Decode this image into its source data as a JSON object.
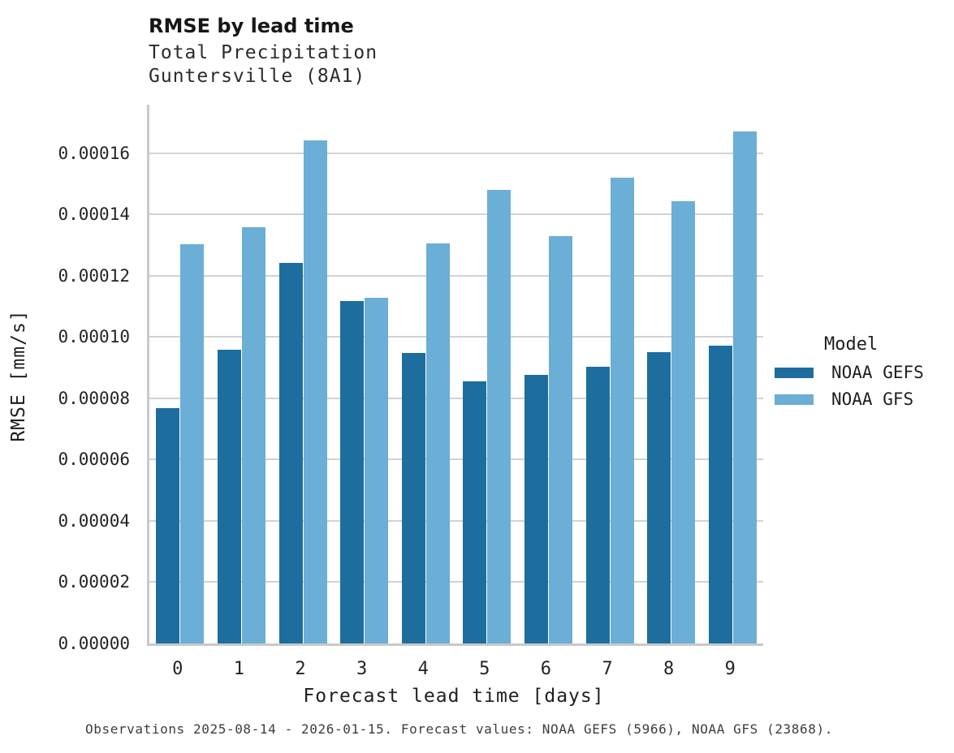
{
  "header": {
    "title": "RMSE by lead time",
    "subtitle1": "Total Precipitation",
    "subtitle2": "Guntersville (8A1)"
  },
  "axes": {
    "xlabel": "Forecast lead time [days]",
    "ylabel": "RMSE [mm/s]"
  },
  "legend": {
    "title": "Model",
    "items": [
      {
        "label": "NOAA GEFS",
        "color": "#1d6e9e"
      },
      {
        "label": "NOAA GFS",
        "color": "#6baed6"
      }
    ]
  },
  "footer": {
    "caption": "Observations 2025-08-14 - 2026-01-15. Forecast values: NOAA GEFS (5966), NOAA GFS (23868)."
  },
  "chart_data": {
    "type": "bar",
    "title": "RMSE by lead time",
    "subtitle": [
      "Total Precipitation",
      "Guntersville (8A1)"
    ],
    "xlabel": "Forecast lead time [days]",
    "ylabel": "RMSE [mm/s]",
    "categories": [
      "0",
      "1",
      "2",
      "3",
      "4",
      "5",
      "6",
      "7",
      "8",
      "9"
    ],
    "series": [
      {
        "name": "NOAA GEFS",
        "color": "#1d6e9e",
        "values": [
          7.67e-05,
          9.58e-05,
          0.0001243,
          0.0001117,
          9.48e-05,
          8.55e-05,
          8.77e-05,
          9.04e-05,
          9.5e-05,
          9.72e-05
        ]
      },
      {
        "name": "NOAA GFS",
        "color": "#6baed6",
        "values": [
          0.0001303,
          0.0001358,
          0.0001641,
          0.0001128,
          0.0001306,
          0.0001479,
          0.0001328,
          0.0001519,
          0.0001444,
          0.0001671
        ]
      }
    ],
    "ylim": [
      0,
      0.0001758
    ],
    "yticks": [
      0.0,
      2e-05,
      4e-05,
      6e-05,
      8e-05,
      0.0001,
      0.00012,
      0.00014,
      0.00016
    ],
    "ytick_labels": [
      "0.00000",
      "0.00002",
      "0.00004",
      "0.00006",
      "0.00008",
      "0.00010",
      "0.00012",
      "0.00014",
      "0.00016"
    ],
    "grid": true,
    "legend_title": "Model",
    "legend_position": "right",
    "caption": "Observations 2025-08-14 - 2026-01-15. Forecast values: NOAA GEFS (5966), NOAA GFS (23868)."
  }
}
